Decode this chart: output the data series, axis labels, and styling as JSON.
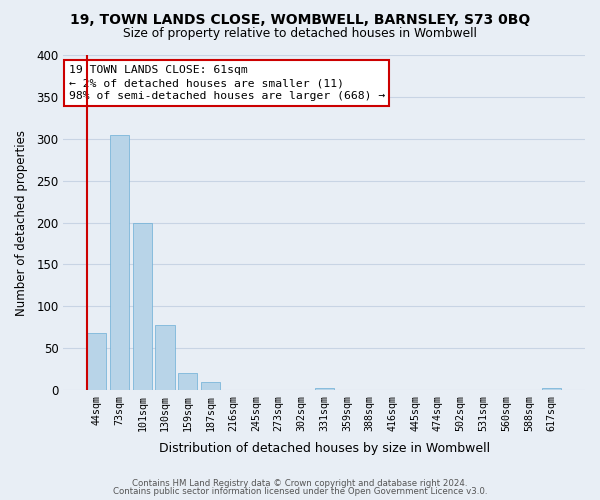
{
  "title": "19, TOWN LANDS CLOSE, WOMBWELL, BARNSLEY, S73 0BQ",
  "subtitle": "Size of property relative to detached houses in Wombwell",
  "xlabel": "Distribution of detached houses by size in Wombwell",
  "ylabel": "Number of detached properties",
  "bar_labels": [
    "44sqm",
    "73sqm",
    "101sqm",
    "130sqm",
    "159sqm",
    "187sqm",
    "216sqm",
    "245sqm",
    "273sqm",
    "302sqm",
    "331sqm",
    "359sqm",
    "388sqm",
    "416sqm",
    "445sqm",
    "474sqm",
    "502sqm",
    "531sqm",
    "560sqm",
    "588sqm",
    "617sqm"
  ],
  "bar_values": [
    68,
    304,
    199,
    78,
    20,
    10,
    0,
    0,
    0,
    0,
    3,
    0,
    0,
    0,
    0,
    0,
    0,
    0,
    0,
    0,
    3
  ],
  "bar_color": "#b8d4e8",
  "highlight_color": "#cc0000",
  "annotation_line1": "19 TOWN LANDS CLOSE: 61sqm",
  "annotation_line2": "← 2% of detached houses are smaller (11)",
  "annotation_line3": "98% of semi-detached houses are larger (668) →",
  "annotation_box_color": "#ffffff",
  "annotation_box_edge": "#cc0000",
  "ylim": [
    0,
    400
  ],
  "yticks": [
    0,
    50,
    100,
    150,
    200,
    250,
    300,
    350,
    400
  ],
  "grid_color": "#c8d4e4",
  "bg_color": "#e8eef5",
  "footer1": "Contains HM Land Registry data © Crown copyright and database right 2024.",
  "footer2": "Contains public sector information licensed under the Open Government Licence v3.0."
}
